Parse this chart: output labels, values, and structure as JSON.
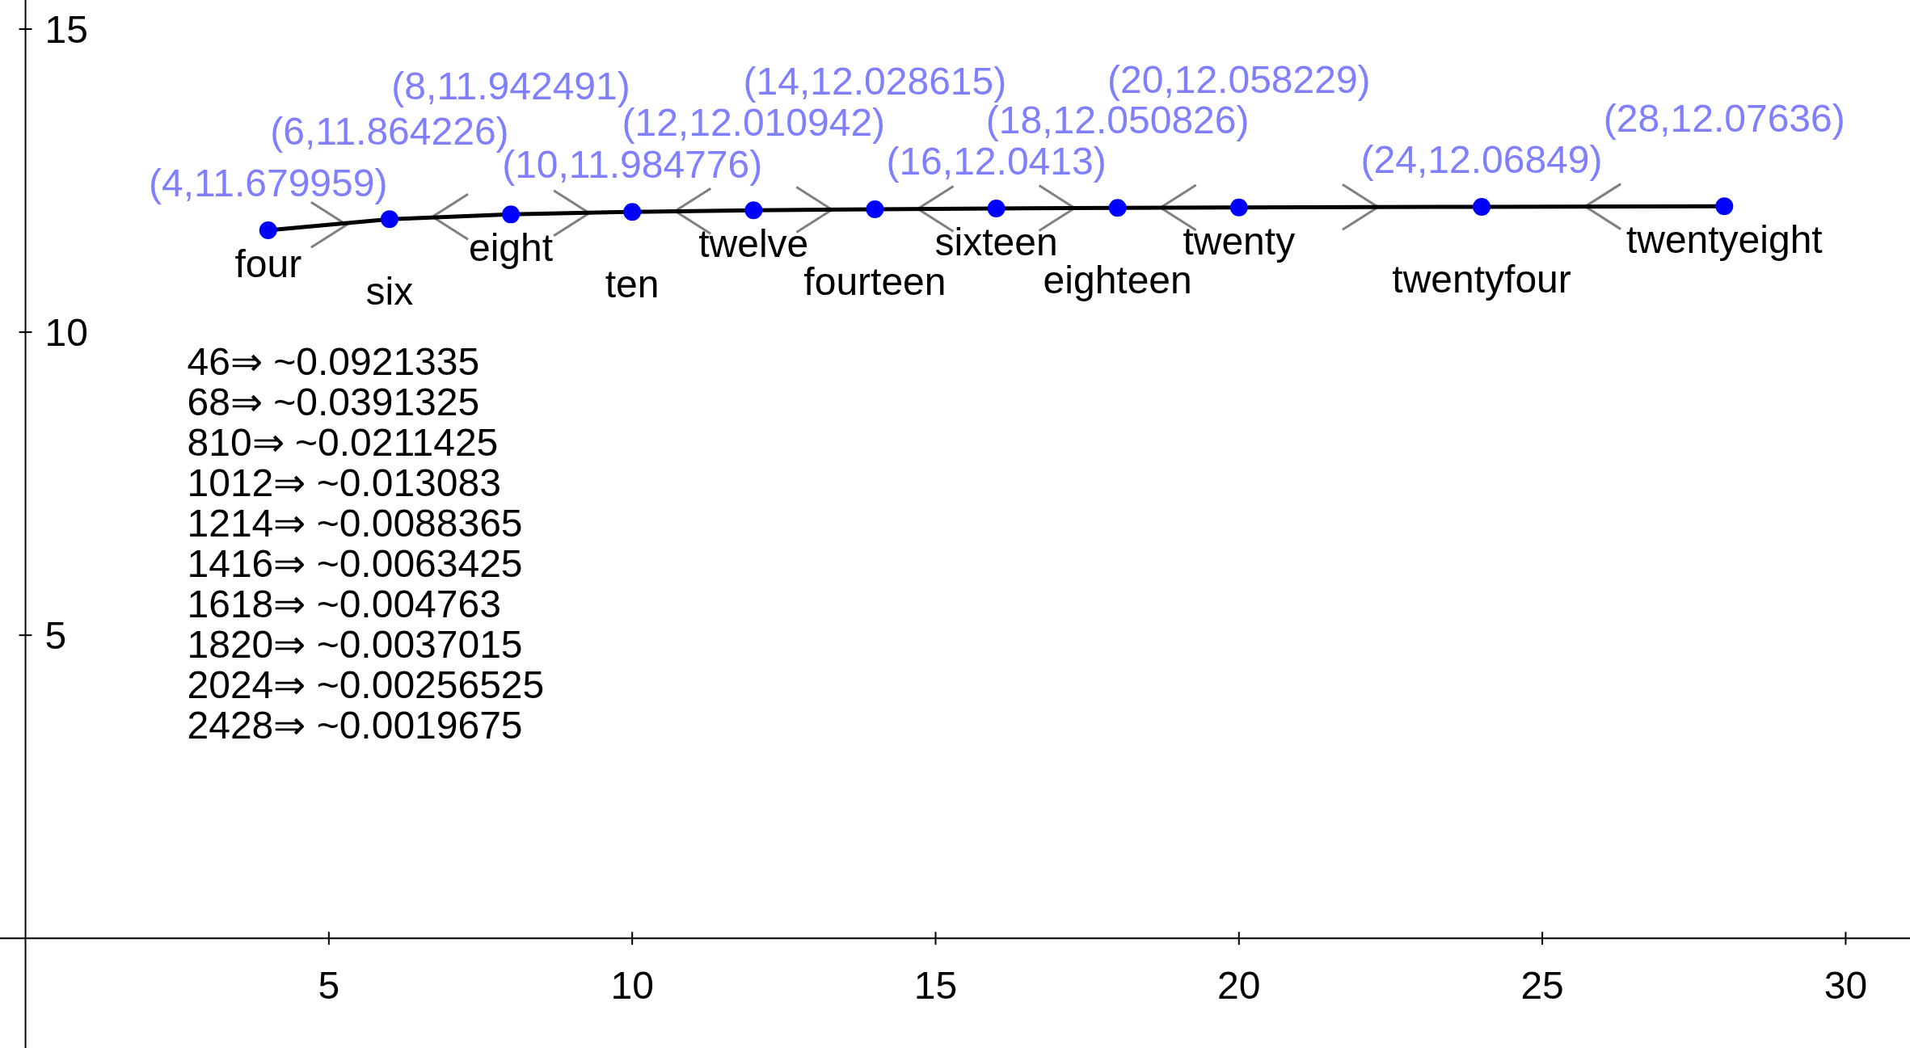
{
  "chart_data": {
    "type": "line",
    "x": [
      4,
      6,
      8,
      10,
      12,
      14,
      16,
      18,
      20,
      24,
      28
    ],
    "series": [
      {
        "color": "#000000",
        "values": [
          11.679959,
          11.864226,
          11.942491,
          11.984776,
          12.010942,
          12.028615,
          12.0413,
          12.050826,
          12.058229,
          12.06849,
          12.07636
        ],
        "value_labels": [
          "(4,11.679959)",
          "(6,11.864226)",
          "(8,11.942491)",
          "(10,11.984776)",
          "(12,12.010942)",
          "(14,12.028615)",
          "(16,12.0413)",
          "(18,12.050826)",
          "(20,12.058229)",
          "(24,12.06849)",
          "(28,12.07636)"
        ]
      }
    ],
    "marker": "circle",
    "xlim": [
      -0.42,
      31.06
    ],
    "ylim": [
      -1.81,
      15.48
    ],
    "xticks": [
      5,
      10,
      15,
      20,
      25,
      30
    ],
    "yticks": [
      5,
      10,
      15
    ],
    "grid": false,
    "annotations": [
      {
        "text": "four",
        "x": 4,
        "y": 11.679959
      },
      {
        "text": "six",
        "x": 6,
        "y": 11.864226
      },
      {
        "text": "eight",
        "x": 8,
        "y": 11.942491
      },
      {
        "text": "ten",
        "x": 10,
        "y": 11.984776
      },
      {
        "text": "twelve",
        "x": 12,
        "y": 12.010942
      },
      {
        "text": "fourteen",
        "x": 14,
        "y": 12.028615
      },
      {
        "text": "sixteen",
        "x": 16,
        "y": 12.0413
      },
      {
        "text": "eighteen",
        "x": 18,
        "y": 12.050826
      },
      {
        "text": "twenty",
        "x": 20,
        "y": 12.058229
      },
      {
        "text": "twentyfour",
        "x": 24,
        "y": 12.06849
      },
      {
        "text": "twentyeight",
        "x": 28,
        "y": 12.07636
      },
      "46⇒ ~0.0921335",
      "68⇒ ~0.0391325",
      "810⇒ ~0.0211425",
      "1012⇒ ~0.013083",
      "1214⇒ ~0.0088365",
      "1416⇒ ~0.0063425",
      "1618⇒ ~0.004763",
      "1820⇒ ~0.0037015",
      "2024⇒ ~0.00256525",
      "2428⇒ ~0.0019675"
    ]
  }
}
